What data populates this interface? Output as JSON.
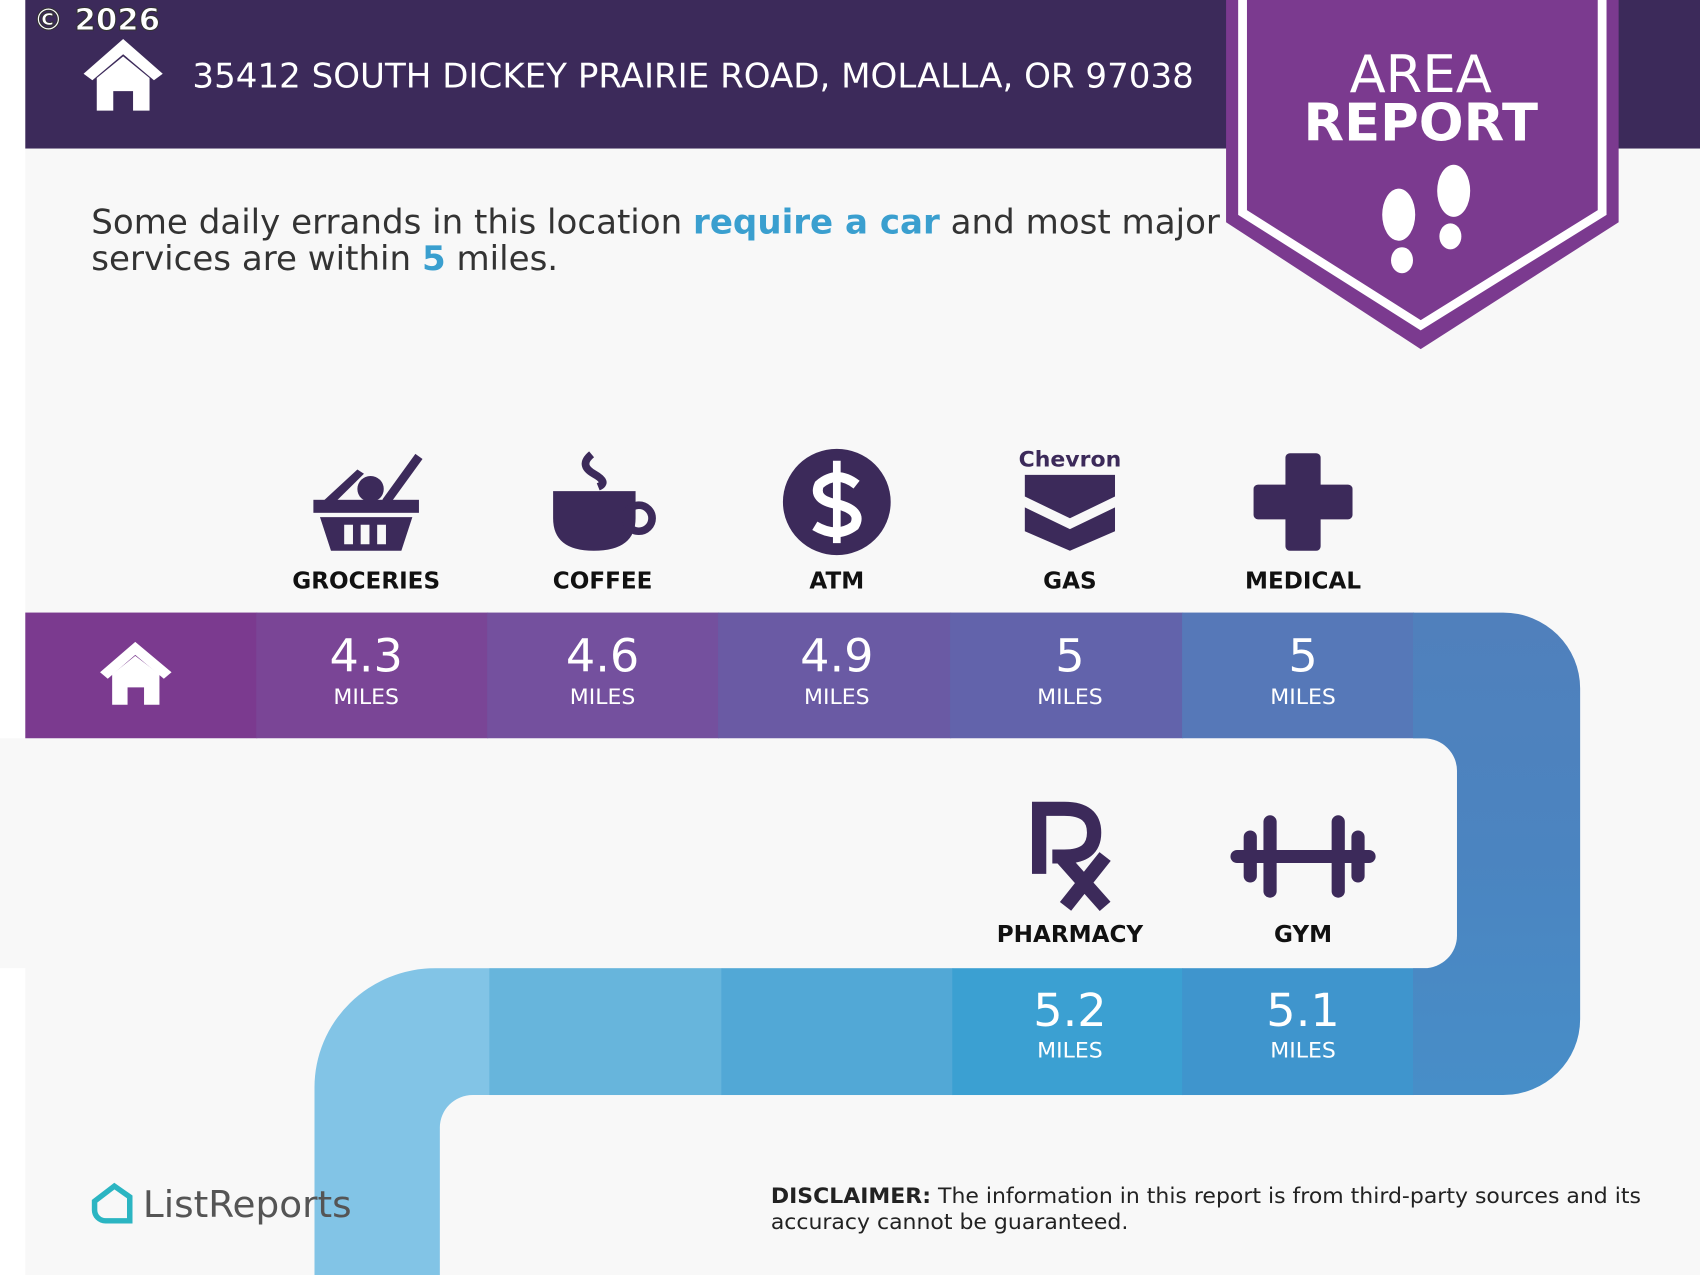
{
  "copyright": "© 2026",
  "header": {
    "address": "35412 SOUTH DICKEY PRAIRIE ROAD, MOLALLA, OR 97038"
  },
  "badge": {
    "lines": [
      "AREA",
      "REPORT"
    ]
  },
  "summary": {
    "line1": [
      "Some daily errands in this location ",
      "require a car",
      " and most major"
    ],
    "line2": [
      "services are within ",
      "5",
      " miles."
    ]
  },
  "amenities": [
    {
      "label": "GROCERIES",
      "distance": "4.3",
      "unit": "MILES"
    },
    {
      "label": "COFFEE",
      "distance": "4.6",
      "unit": "MILES"
    },
    {
      "label": "ATM",
      "distance": "4.9",
      "unit": "MILES"
    },
    {
      "label": "GAS",
      "brand": "Chevron",
      "distance": "5",
      "unit": "MILES"
    },
    {
      "label": "MEDICAL",
      "distance": "5",
      "unit": "MILES"
    },
    {
      "label": "PHARMACY",
      "distance": "5.2",
      "unit": "MILES"
    },
    {
      "label": "GYM",
      "distance": "5.1",
      "unit": "MILES"
    }
  ],
  "logo": "ListReports",
  "disclaimer": {
    "label": "DISCLAIMER:",
    "lines": [
      " The information in this report is from third-party sources and its",
      "accuracy cannot be guaranteed."
    ]
  }
}
